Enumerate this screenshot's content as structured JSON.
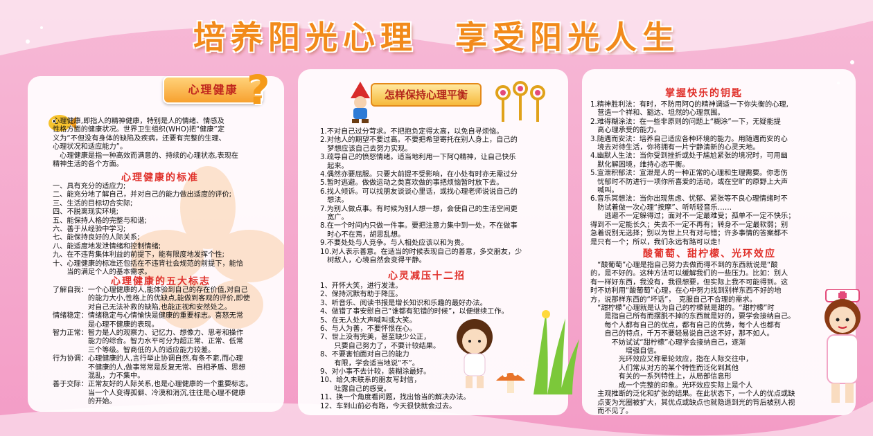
{
  "title": "培养阳光心理　享受阳光人生",
  "icons": [
    "flower-swirl-icon",
    "gnome-icon",
    "keys-icon",
    "question-mark-icon",
    "fish-icon",
    "girl-icon",
    "nurse-icon",
    "mushroom-icon",
    "grass-icon"
  ],
  "colors": {
    "heading": "#e0302a",
    "title": "#f28a1a",
    "bg": "#f39cc6"
  },
  "left": {
    "badge": "心理健康",
    "intro": [
      "心理健康,即指人的精神健康，特别是人的情绪、情感及",
      "性格方面的健康状况。世界卫生组织(WHO)把“健康”定",
      "义为“不但没有身体的缺陷及疾病，还要有完整的生理、",
      "心理状况和适应能力”。",
      "　心理健康是指一种高效而满意的、持续的心理状态,表现在",
      "精神生活的各个方面。"
    ],
    "standards_heading": "心理健康的标准",
    "standards": [
      "一、具有充分的适应力;",
      "二、能充分地了解自己，并对自己的能力做出适度的评价;",
      "三、生活的目标切合实际;",
      "四、不脱离现实环境;",
      "五、能保持人格的完整与和谐;",
      "六、善于从经验中学习;",
      "七、能保持良好的人际关系;",
      "八、能适度地发泄情绪和控制情绪;",
      "九、在不违背集体利益的前提下，能有限度地发挥个性;",
      "十、心理健康的标准还包括在不违背社会规范的前提下，能恰",
      "　　当的满足个人的基本需求。"
    ],
    "signs_heading": "心理健康的五大标志",
    "signs": [
      "了解自我：一个心理健康的人,能体验到自己的存在价值,对自己",
      "　　　　　的能力大小,性格上的优缺点,能做到客观的评价,即使",
      "　　　　　对自己无法补救的缺陷,也能正视和安然处之。",
      "情绪稳定：情绪稳定与心情愉快是健康的重要标志。喜怒无常",
      "　　　　　是心理不健康的表现。",
      "智力正常：智力是人的观察力、记忆力、想像力、思考和操作",
      "　　　　　能力的综合。智力水平可分为超正常、正常、低常",
      "　　　　　三个等级。智商低的人的适应能力较差。",
      "行为协调：心理健康的人,言行举止协调自然,有条不紊,而心理",
      "　　　　　不健康的人,做事常常是反复无常、自相矛盾、思想",
      "　　　　　混乱，力不集中。",
      "善于交际：正常友好的人际关系,也是心理健康的一个重要标志。",
      "　　　　　当一个人变得孤僻、冷漠和消沉,往往是心理不健康",
      "　　　　　的开始。"
    ]
  },
  "middle": {
    "badge": "怎样保持心理平衡",
    "balance": [
      "1.不对自己过分苛求。不把抱负定得太高，以免自寻烦恼。",
      "2.对他人的期望不要过高。不要把希望寄托在别人身上，自己的",
      "　梦想应该自己去努力实现。",
      "3.疏导自己的愤怒情绪。适当地利用一下阿Q精神，让自己快乐",
      "　起来。",
      "4.偶然亦要屈服。只要大前提不受影响，在小处有时亦无需过分",
      "5.暂时逃避。做做运动之类喜欢做的事把烦恼暂时放下去。",
      "6.找人倾诉。可以找朋友谈谈心里话，或找心理老师说说自己的",
      "　想法。",
      "7.为别人做点事。有时候为别人想一想，会使自己的生活空间更",
      "　宽广。",
      "8.在一个时间内只做一件事。要把注意力集中到一处，不在做事",
      "　时心不在焉，胡思乱想。",
      "9.不要处处与人竞争。与人相处应该以和为贵。",
      "10.对人表示善意。在适当的时候表现自己的善意，多交朋友，少",
      "　树敌人，心境自然会变得平静。"
    ],
    "stress_heading": "心灵减压十二招",
    "stress": [
      "1、开怀大笑，进行发泄。",
      "2、保持沉默有助于降压。",
      "3、听音乐、阅读书报是增长知识和乐趣的最好办法。",
      "4、做错了事安慰自己“谁都有犯错的时候”，以便继续工作。",
      "5、在无人处大声喊叫或大笑。",
      "6、与人为善，不要怀恨在心。",
      "7、世上没有完美，甚至缺少公正，",
      "　　只要自己努力了，不要计较结果。",
      "8、不要害怕面对自己的能力",
      "　　有限，学会适当地说“不”。",
      "9、对小事不去计较，装糊涂最好。",
      "10、给久未联系的朋友写封信，",
      "　　吐露自己的感受。",
      "11、换一个角度看问题，找出恰当的解决办法。",
      "12、车到山前必有路，今天很快就会过去。"
    ]
  },
  "right": {
    "keys_heading": "掌握快乐的钥匙",
    "keys": [
      "1.精神胜利法：有时，不防用阿Q的精神调适一下你失衡的心理,",
      "　营造一个祥和、豁达、坦然的心理氛围。",
      "2.难得糊涂法：在一些非原则的问题上“糊涂”一下，无疑能提",
      "　高心理承受的能力。",
      "3.随遇而安法：培养自己适应各种环境的能力。用随遇而安的心",
      "　境去对待生活，你将拥有一片宁静清新的心灵天地。",
      "4.幽默人生法：当你受到挫折或处于尴尬紧张的境况时，可用幽",
      "　默化解困境，维持心态平衡。",
      "5.宣泄积郁法：宣泄是人的一种正常的心理和生理需要。你悲伤",
      "　忧郁时不防进行一项你所喜爱的活动，或在空旷的原野上大声",
      "　喊叫。",
      "6.音乐冥想法：当你出现焦虑、忧郁、紧张等不良心理情绪时不",
      "　防试着做一次心理“按摩”、听听轻音乐……",
      "　　逃避不一定躲得过；面对不一定最难受；孤单不一定不快乐；",
      "得到不一定能长久；失去不一定不再有；转身不一定最软弱；别",
      "急着说别无选择；别以为世上只有对与错；许多事情的答案都不",
      "是只有一个；所以，我们永远有路可以走！"
    ],
    "effects_heading": "酸葡萄、甜柠檬、光环效应",
    "effects": [
      "　“酸葡萄”心理是指自己努力去做而得不到的东西就说是“酸",
      "的，是不好的。这种方法可以缓解我们的一些压力。比如：别人",
      "有一样好东西，我没有，我很想要，但实际上我不可能得到。这",
      "时不妨利用“酸葡萄”心理，在心中努力找到别样东西不好的地",
      "方，说那样东西的“坏话”，　克服自己不合理的需求。",
      "　“甜柠檬”心理就是认为自己的柠檬就是甜的。“甜柠檬”时",
      "　　是指自己所有而摆脱不掉的东西就是好的，要学会接纳自己。",
      "　　每个人都有自己的优点，都有自己的优势，每个人也都有",
      "　　自己的特点，千万不要轻易说自己这不好，那不如人。",
      "　　　不妨试试“甜柠檬”心理学会接纳自己，逐渐",
      "　　　　　增强自信。",
      "　　　　光环效应又称晕轮效应，指在人际交往中，",
      "　　　　人们常从对方的某个特性而泛化到其他",
      "　　　　有关的一系列特性上，从局部信息形",
      "　　　　成一个完整的印象。光环效应实际上是个人",
      "　主观推断的泛化和扩张的结果。在此状态下，一个人的优点或缺",
      "　点变为光圈被扩大，其优点或缺点也就隐退到光的背后被别人视",
      "　而不见了。"
    ]
  }
}
